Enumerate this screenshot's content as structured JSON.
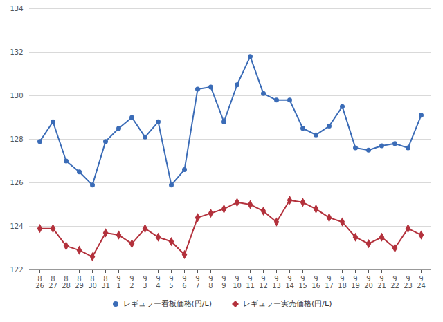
{
  "chart_data": {
    "type": "line",
    "categories": [
      "8\n26",
      "8\n27",
      "8\n28",
      "8\n29",
      "8\n30",
      "8\n31",
      "9\n1",
      "9\n2",
      "9\n3",
      "9\n4",
      "9\n5",
      "9\n6",
      "9\n7",
      "9\n8",
      "9\n9",
      "9\n10",
      "9\n11",
      "9\n12",
      "9\n13",
      "9\n14",
      "9\n15",
      "9\n16",
      "9\n17",
      "9\n18",
      "9\n19",
      "9\n20",
      "9\n21",
      "9\n22",
      "9\n23",
      "9\n24"
    ],
    "series": [
      {
        "name": "レギュラー看板価格(円/L)",
        "color": "#3b6cb7",
        "marker": "circle",
        "values": [
          127.9,
          128.8,
          127.0,
          126.5,
          125.9,
          127.9,
          128.5,
          129.0,
          128.1,
          128.8,
          125.9,
          126.6,
          130.3,
          130.4,
          128.8,
          130.5,
          131.8,
          130.1,
          129.8,
          129.8,
          128.5,
          128.2,
          128.6,
          129.5,
          127.6,
          127.5,
          127.7,
          127.8,
          127.6,
          129.1
        ]
      },
      {
        "name": "レギュラー実売価格(円/L)",
        "color": "#b3313c",
        "marker": "diamond",
        "values": [
          123.9,
          123.9,
          123.1,
          122.9,
          122.6,
          123.7,
          123.6,
          123.2,
          123.9,
          123.5,
          123.3,
          122.7,
          124.4,
          124.6,
          124.8,
          125.1,
          125.0,
          124.7,
          124.2,
          125.2,
          125.1,
          124.8,
          124.4,
          124.2,
          123.5,
          123.2,
          123.5,
          123.0,
          123.9,
          123.6
        ]
      }
    ],
    "ylim": [
      122,
      134
    ],
    "yticks": [
      122,
      124,
      126,
      128,
      130,
      132,
      134
    ],
    "grid": true,
    "legend": "bottom"
  }
}
